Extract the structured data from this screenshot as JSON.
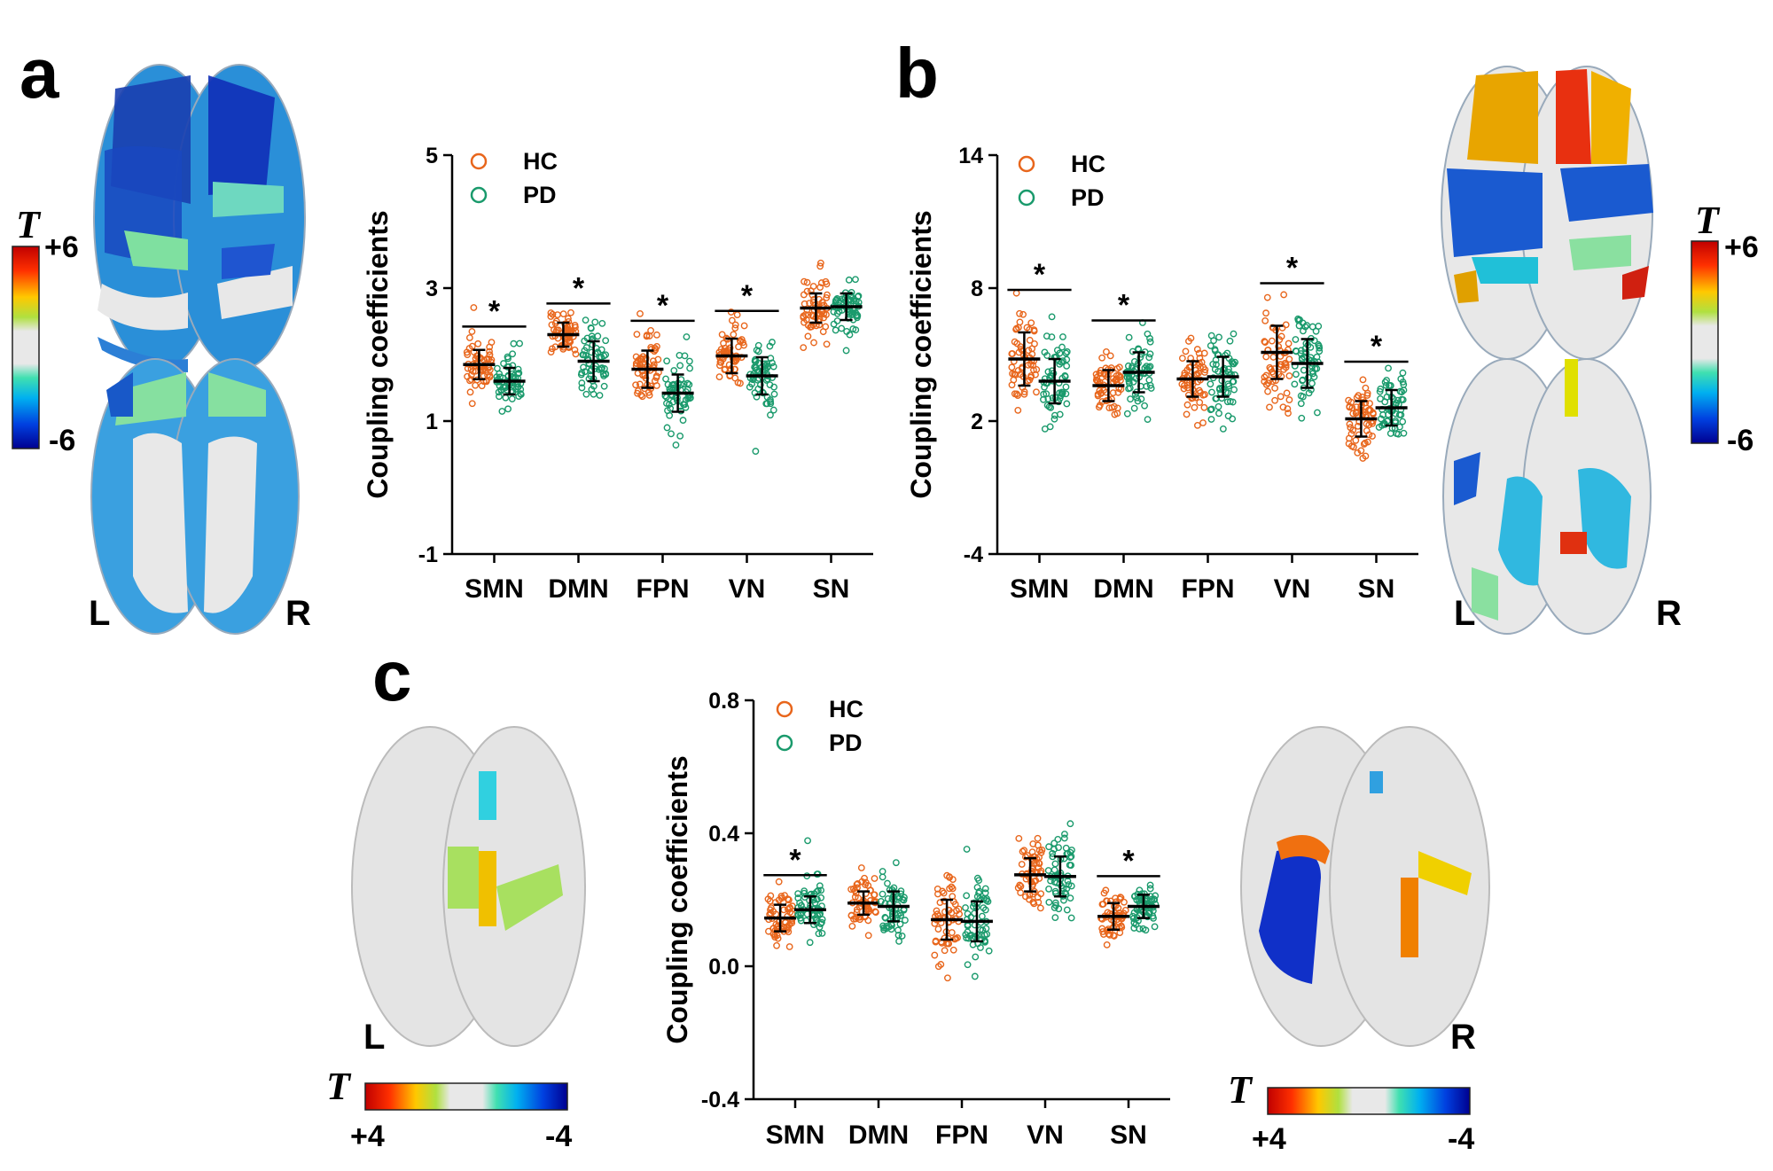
{
  "panels": {
    "a": {
      "letter": "a"
    },
    "b": {
      "letter": "b"
    },
    "c": {
      "letter": "c"
    }
  },
  "colorbars": {
    "a": {
      "symbol": "T",
      "max": "+6",
      "min": "-6"
    },
    "b": {
      "symbol": "T",
      "max": "+6",
      "min": "-6"
    },
    "c_left": {
      "symbol": "T",
      "left": "+4",
      "right": "-4"
    },
    "c_right": {
      "symbol": "T",
      "left": "+4",
      "right": "-4"
    }
  },
  "hemispheres": {
    "left": "L",
    "right": "R"
  },
  "colors": {
    "HC": "#e8661c",
    "PD": "#1a9a6c"
  },
  "chart_data": [
    {
      "type": "scatter",
      "panel": "a",
      "ylabel": "Coupling coefficients",
      "ylim": [
        -1,
        5
      ],
      "yticks": [
        -1,
        1,
        3,
        5
      ],
      "categories": [
        "SMN",
        "DMN",
        "FPN",
        "VN",
        "SN"
      ],
      "legend": [
        "HC",
        "PD"
      ],
      "series": [
        {
          "name": "HC",
          "mean": [
            1.85,
            2.3,
            1.78,
            1.98,
            2.7
          ],
          "sd": [
            0.22,
            0.18,
            0.28,
            0.26,
            0.22
          ]
        },
        {
          "name": "PD",
          "mean": [
            1.6,
            1.9,
            1.42,
            1.68,
            2.72
          ],
          "sd": [
            0.2,
            0.3,
            0.28,
            0.28,
            0.2
          ]
        }
      ],
      "significant": [
        "*",
        "*",
        "*",
        "*",
        ""
      ]
    },
    {
      "type": "scatter",
      "panel": "b",
      "ylabel": "Coupling coefficients",
      "ylim": [
        -4,
        14
      ],
      "yticks": [
        -4,
        2,
        8,
        14
      ],
      "categories": [
        "SMN",
        "DMN",
        "FPN",
        "VN",
        "SN"
      ],
      "legend": [
        "HC",
        "PD"
      ],
      "series": [
        {
          "name": "HC",
          "mean": [
            4.8,
            3.6,
            3.9,
            5.1,
            2.1
          ],
          "sd": [
            1.2,
            0.7,
            0.8,
            1.2,
            0.8
          ]
        },
        {
          "name": "PD",
          "mean": [
            3.8,
            4.2,
            4.0,
            4.6,
            2.6
          ],
          "sd": [
            1.0,
            0.9,
            0.9,
            1.1,
            0.8
          ]
        }
      ],
      "significant": [
        "*",
        "*",
        "",
        "*",
        "*"
      ]
    },
    {
      "type": "scatter",
      "panel": "c",
      "ylabel": "Coupling coefficients",
      "ylim": [
        -0.4,
        0.8
      ],
      "yticks": [
        -0.4,
        0.0,
        0.4,
        0.8
      ],
      "ytick_labels": [
        "-0.4",
        "0.0",
        "0.4",
        "0.8"
      ],
      "categories": [
        "SMN",
        "DMN",
        "FPN",
        "VN",
        "SN"
      ],
      "legend": [
        "HC",
        "PD"
      ],
      "series": [
        {
          "name": "HC",
          "mean": [
            0.145,
            0.19,
            0.14,
            0.275,
            0.15
          ],
          "sd": [
            0.04,
            0.035,
            0.06,
            0.05,
            0.04
          ]
        },
        {
          "name": "PD",
          "mean": [
            0.17,
            0.18,
            0.135,
            0.27,
            0.18
          ],
          "sd": [
            0.04,
            0.045,
            0.06,
            0.06,
            0.035
          ]
        }
      ],
      "significant": [
        "*",
        "",
        "",
        "",
        "*"
      ]
    }
  ]
}
